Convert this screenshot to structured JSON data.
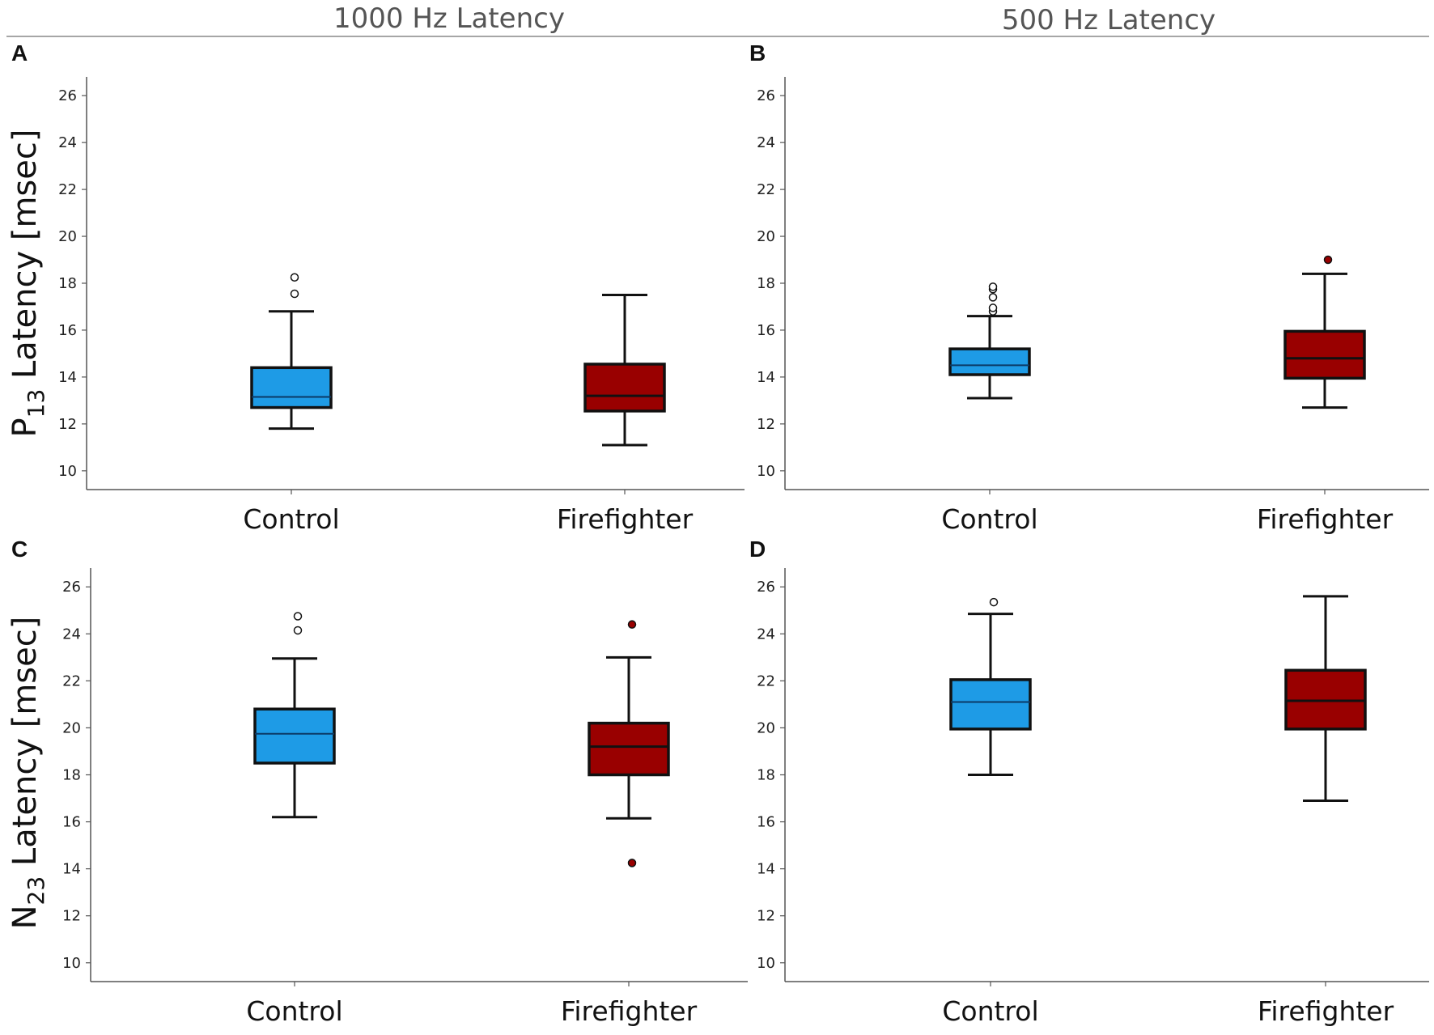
{
  "column_titles": [
    "1000 Hz Latency",
    "500 Hz Latency"
  ],
  "row_ylabels": [
    {
      "main": "P",
      "sub": "13",
      "rest": " Latency [msec]"
    },
    {
      "main": "N",
      "sub": "23",
      "rest": " Latency [msec]"
    }
  ],
  "colors": {
    "control": "#1e9be6",
    "firefighter": "#990000",
    "axis": "#555555",
    "title_rule": "#888888"
  },
  "chart_data": [
    {
      "panel": "A",
      "type": "boxplot",
      "column": "1000 Hz Latency",
      "ylabel": "P13 Latency [msec]",
      "ylim": [
        9.2,
        26.8
      ],
      "yticks": [
        10,
        12,
        14,
        16,
        18,
        20,
        22,
        24,
        26
      ],
      "categories": [
        "Control",
        "Firefighter"
      ],
      "boxes": [
        {
          "group": "Control",
          "whisker_low": 11.8,
          "q1": 12.7,
          "median": 13.15,
          "q3": 14.4,
          "whisker_high": 16.8,
          "outliers": [
            17.55,
            18.25
          ],
          "outlier_style": "open"
        },
        {
          "group": "Firefighter",
          "whisker_low": 11.1,
          "q1": 12.55,
          "median": 13.2,
          "q3": 14.55,
          "whisker_high": 17.5,
          "outliers": [],
          "outlier_style": "filled"
        }
      ]
    },
    {
      "panel": "B",
      "type": "boxplot",
      "column": "500 Hz Latency",
      "ylabel": "P13 Latency [msec]",
      "ylim": [
        9.2,
        26.8
      ],
      "yticks": [
        10,
        12,
        14,
        16,
        18,
        20,
        22,
        24,
        26
      ],
      "categories": [
        "Control",
        "Firefighter"
      ],
      "boxes": [
        {
          "group": "Control",
          "whisker_low": 13.1,
          "q1": 14.1,
          "median": 14.5,
          "q3": 15.2,
          "whisker_high": 16.6,
          "outliers": [
            16.8,
            16.95,
            17.4,
            17.75,
            17.85
          ],
          "outlier_style": "open"
        },
        {
          "group": "Firefighter",
          "whisker_low": 12.7,
          "q1": 13.95,
          "median": 14.8,
          "q3": 15.95,
          "whisker_high": 18.4,
          "outliers": [
            19.0
          ],
          "outlier_style": "filled"
        }
      ]
    },
    {
      "panel": "C",
      "type": "boxplot",
      "column": "1000 Hz Latency",
      "ylabel": "N23 Latency [msec]",
      "ylim": [
        9.2,
        26.8
      ],
      "yticks": [
        10,
        12,
        14,
        16,
        18,
        20,
        22,
        24,
        26
      ],
      "categories": [
        "Control",
        "Firefighter"
      ],
      "boxes": [
        {
          "group": "Control",
          "whisker_low": 16.2,
          "q1": 18.5,
          "median": 19.75,
          "q3": 20.8,
          "whisker_high": 22.95,
          "outliers": [
            24.15,
            24.75
          ],
          "outlier_style": "open"
        },
        {
          "group": "Firefighter",
          "whisker_low": 16.15,
          "q1": 18.0,
          "median": 19.2,
          "q3": 20.2,
          "whisker_high": 23.0,
          "outliers": [
            14.25,
            24.4
          ],
          "outlier_style": "filled"
        }
      ]
    },
    {
      "panel": "D",
      "type": "boxplot",
      "column": "500 Hz Latency",
      "ylabel": "N23 Latency [msec]",
      "ylim": [
        9.2,
        26.8
      ],
      "yticks": [
        10,
        12,
        14,
        16,
        18,
        20,
        22,
        24,
        26
      ],
      "categories": [
        "Control",
        "Firefighter"
      ],
      "boxes": [
        {
          "group": "Control",
          "whisker_low": 18.0,
          "q1": 19.95,
          "median": 21.1,
          "q3": 22.05,
          "whisker_high": 24.85,
          "outliers": [
            25.35
          ],
          "outlier_style": "open"
        },
        {
          "group": "Firefighter",
          "whisker_low": 16.9,
          "q1": 19.95,
          "median": 21.15,
          "q3": 22.45,
          "whisker_high": 25.6,
          "outliers": [],
          "outlier_style": "filled"
        }
      ]
    }
  ]
}
